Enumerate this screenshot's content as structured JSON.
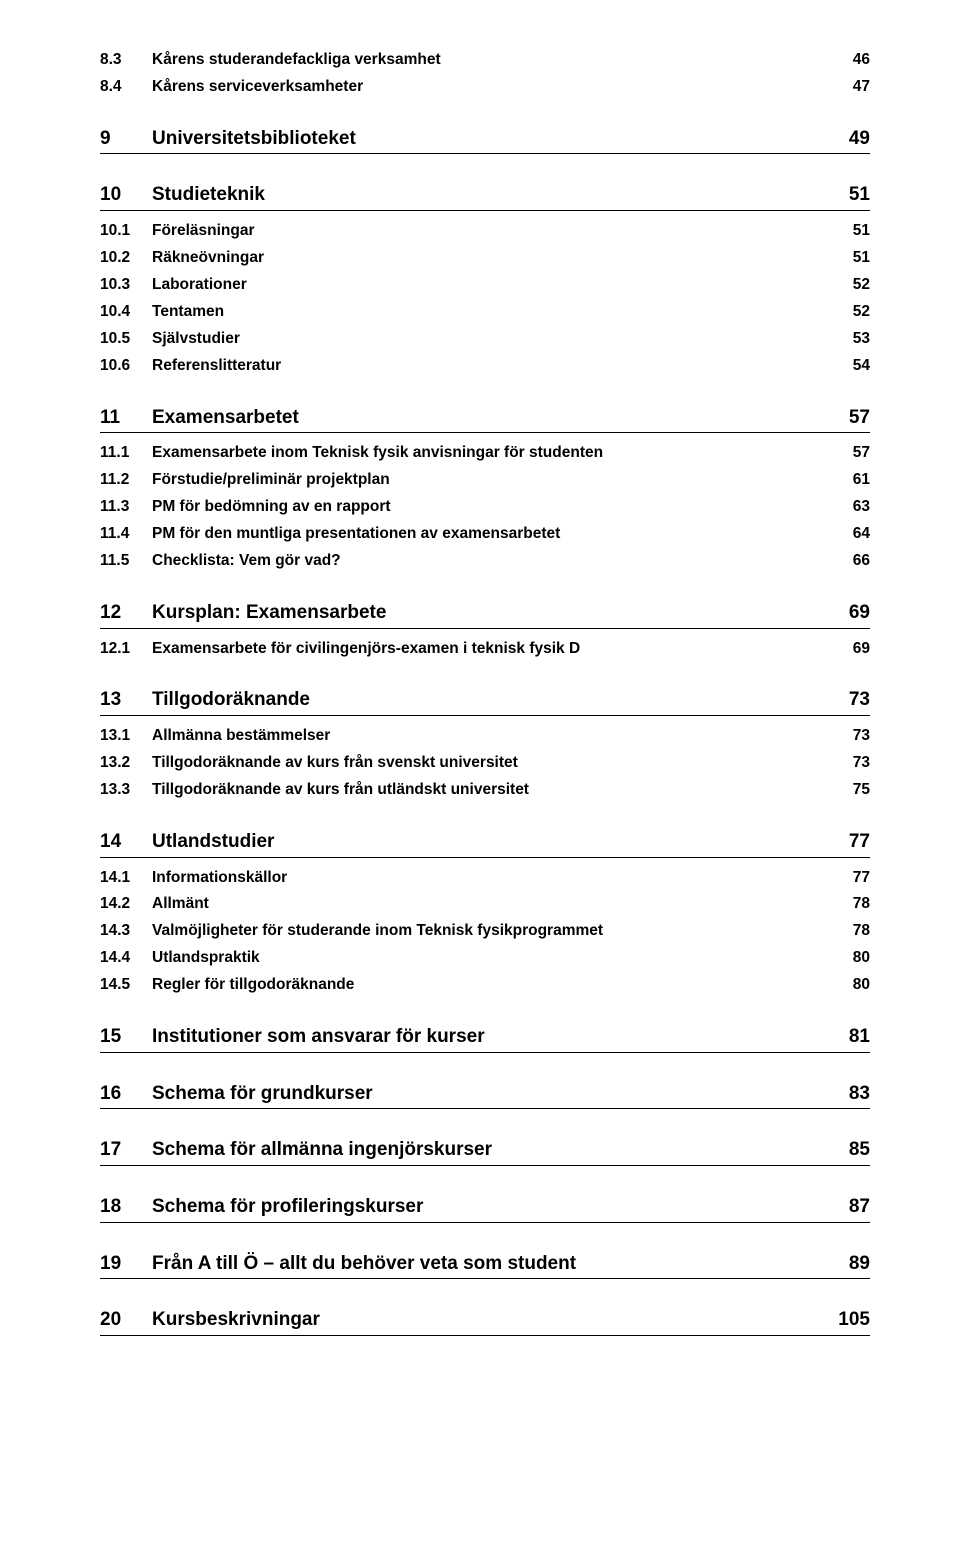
{
  "toc": [
    {
      "type": "sub",
      "num": "8.3",
      "title": "Kårens studerandefackliga verksamhet",
      "page": "46"
    },
    {
      "type": "sub",
      "num": "8.4",
      "title": "Kårens serviceverksamheter",
      "page": "47"
    },
    {
      "type": "section",
      "num": "9",
      "title": "Universitetsbiblioteket",
      "page": "49"
    },
    {
      "type": "section",
      "num": "10",
      "title": "Studieteknik",
      "page": "51"
    },
    {
      "type": "sub",
      "num": "10.1",
      "title": "Föreläsningar",
      "page": "51"
    },
    {
      "type": "sub",
      "num": "10.2",
      "title": "Räkneövningar",
      "page": "51"
    },
    {
      "type": "sub",
      "num": "10.3",
      "title": "Laborationer",
      "page": "52"
    },
    {
      "type": "sub",
      "num": "10.4",
      "title": "Tentamen",
      "page": "52"
    },
    {
      "type": "sub",
      "num": "10.5",
      "title": "Självstudier",
      "page": "53"
    },
    {
      "type": "sub",
      "num": "10.6",
      "title": "Referenslitteratur",
      "page": "54"
    },
    {
      "type": "section",
      "num": "11",
      "title": "Examensarbetet",
      "page": "57"
    },
    {
      "type": "sub",
      "num": "11.1",
      "title": "Examensarbete inom Teknisk fysik anvisningar för studenten",
      "page": "57"
    },
    {
      "type": "sub",
      "num": "11.2",
      "title": "Förstudie/preliminär projektplan",
      "page": "61"
    },
    {
      "type": "sub",
      "num": "11.3",
      "title": "PM för bedömning av en rapport",
      "page": "63"
    },
    {
      "type": "sub",
      "num": "11.4",
      "title": "PM för den muntliga presentationen av examensarbetet",
      "page": "64"
    },
    {
      "type": "sub",
      "num": "11.5",
      "title": "Checklista: Vem gör vad?",
      "page": "66"
    },
    {
      "type": "section",
      "num": "12",
      "title": "Kursplan: Examensarbete",
      "page": "69"
    },
    {
      "type": "sub",
      "num": "12.1",
      "title": "Examensarbete för civilingenjörs-examen i teknisk fysik D",
      "page": "69"
    },
    {
      "type": "section",
      "num": "13",
      "title": "Tillgodoräknande",
      "page": "73"
    },
    {
      "type": "sub",
      "num": "13.1",
      "title": "Allmänna bestämmelser",
      "page": "73"
    },
    {
      "type": "sub",
      "num": "13.2",
      "title": "Tillgodoräknande av kurs från svenskt universitet",
      "page": "73"
    },
    {
      "type": "sub",
      "num": "13.3",
      "title": "Tillgodoräknande av kurs från utländskt universitet",
      "page": "75"
    },
    {
      "type": "section",
      "num": "14",
      "title": "Utlandstudier",
      "page": "77"
    },
    {
      "type": "sub",
      "num": "14.1",
      "title": "Informationskällor",
      "page": "77"
    },
    {
      "type": "sub",
      "num": "14.2",
      "title": "Allmänt",
      "page": "78"
    },
    {
      "type": "sub",
      "num": "14.3",
      "title": "Valmöjligheter för studerande inom Teknisk fysikprogrammet",
      "page": "78"
    },
    {
      "type": "sub",
      "num": "14.4",
      "title": "Utlandspraktik",
      "page": "80"
    },
    {
      "type": "sub",
      "num": "14.5",
      "title": "Regler för tillgodoräknande",
      "page": "80"
    },
    {
      "type": "section",
      "num": "15",
      "title": "Institutioner som ansvarar för kurser",
      "page": "81"
    },
    {
      "type": "section",
      "num": "16",
      "title": "Schema för grundkurser",
      "page": "83"
    },
    {
      "type": "section",
      "num": "17",
      "title": "Schema för allmänna ingenjörskurser",
      "page": "85"
    },
    {
      "type": "section",
      "num": "18",
      "title": "Schema för profileringskurser",
      "page": "87"
    },
    {
      "type": "section",
      "num": "19",
      "title": "Från A till Ö – allt du behöver veta som student",
      "page": "89"
    },
    {
      "type": "section",
      "num": "20",
      "title": "Kursbeskrivningar",
      "page": "105"
    }
  ]
}
